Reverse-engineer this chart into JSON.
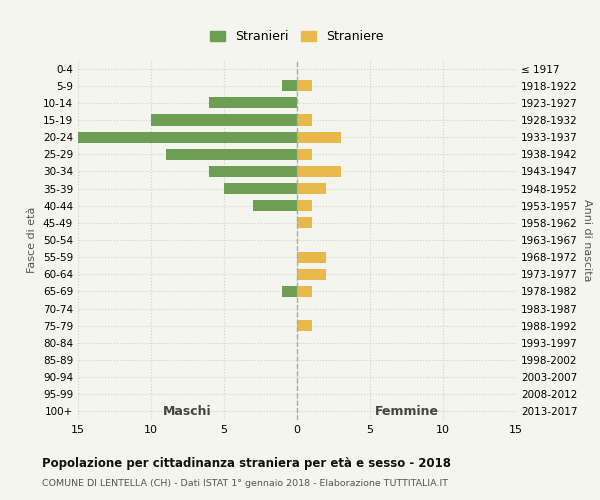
{
  "age_groups": [
    "0-4",
    "5-9",
    "10-14",
    "15-19",
    "20-24",
    "25-29",
    "30-34",
    "35-39",
    "40-44",
    "45-49",
    "50-54",
    "55-59",
    "60-64",
    "65-69",
    "70-74",
    "75-79",
    "80-84",
    "85-89",
    "90-94",
    "95-99",
    "100+"
  ],
  "birth_years": [
    "2013-2017",
    "2008-2012",
    "2003-2007",
    "1998-2002",
    "1993-1997",
    "1988-1992",
    "1983-1987",
    "1978-1982",
    "1973-1977",
    "1968-1972",
    "1963-1967",
    "1958-1962",
    "1953-1957",
    "1948-1952",
    "1943-1947",
    "1938-1942",
    "1933-1937",
    "1928-1932",
    "1923-1927",
    "1918-1922",
    "≤ 1917"
  ],
  "males": [
    0,
    1,
    6,
    10,
    15,
    9,
    6,
    5,
    3,
    0,
    0,
    0,
    0,
    1,
    0,
    0,
    0,
    0,
    0,
    0,
    0
  ],
  "females": [
    0,
    1,
    0,
    1,
    3,
    1,
    3,
    2,
    1,
    1,
    0,
    2,
    2,
    1,
    0,
    1,
    0,
    0,
    0,
    0,
    0
  ],
  "male_color": "#6d9e52",
  "female_color": "#e8b84b",
  "background_color": "#f5f5f0",
  "grid_color": "#d0d0c8",
  "dashed_color": "#aaaaaa",
  "xlim": 15,
  "title": "Popolazione per cittadinanza straniera per età e sesso - 2018",
  "subtitle": "COMUNE DI LENTELLA (CH) - Dati ISTAT 1° gennaio 2018 - Elaborazione TUTTITALIA.IT",
  "left_label": "Maschi",
  "right_label": "Femmine",
  "ylabel_left": "Fasce di età",
  "ylabel_right": "Anni di nascita",
  "legend_male": "Stranieri",
  "legend_female": "Straniere"
}
